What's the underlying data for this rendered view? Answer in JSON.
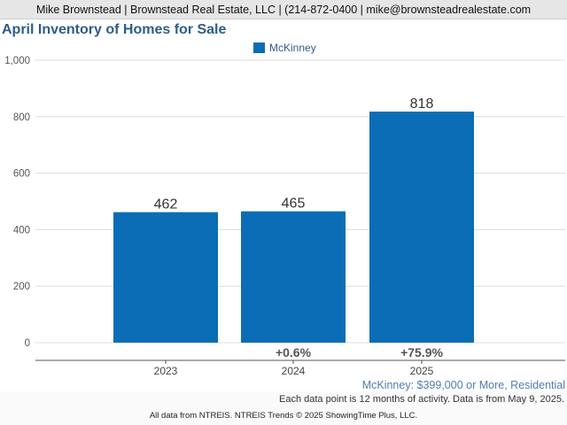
{
  "header": {
    "contact": "Mike Brownstead | Brownstead Real Estate, LLC | (214-872-0400 | mike@brownsteadrealestate.com"
  },
  "chart_data": {
    "type": "bar",
    "title": "April Inventory of Homes for Sale",
    "subtitle": "McKinney: $399,000 or More, Residential",
    "categories": [
      "2023",
      "2024",
      "2025"
    ],
    "series": [
      {
        "name": "McKinney",
        "values": [
          462,
          465,
          818
        ],
        "color": "#0a6db5"
      }
    ],
    "data_labels": [
      "462",
      "465",
      "818"
    ],
    "change_labels": [
      "",
      "+0.6%",
      "+75.9%"
    ],
    "y_ticks": [
      "0",
      "200",
      "400",
      "600",
      "800",
      "1,000"
    ],
    "y_tick_values": [
      0,
      200,
      400,
      600,
      800,
      1000
    ],
    "ylim": [
      0,
      1000
    ],
    "grid": true,
    "legend": "top-center"
  },
  "footer": {
    "note": "Each data point is 12 months of activity. Data is from May 9, 2025.",
    "source": "All data from NTREIS. NTREIS Trends © 2025 ShowingTime Plus, LLC."
  }
}
